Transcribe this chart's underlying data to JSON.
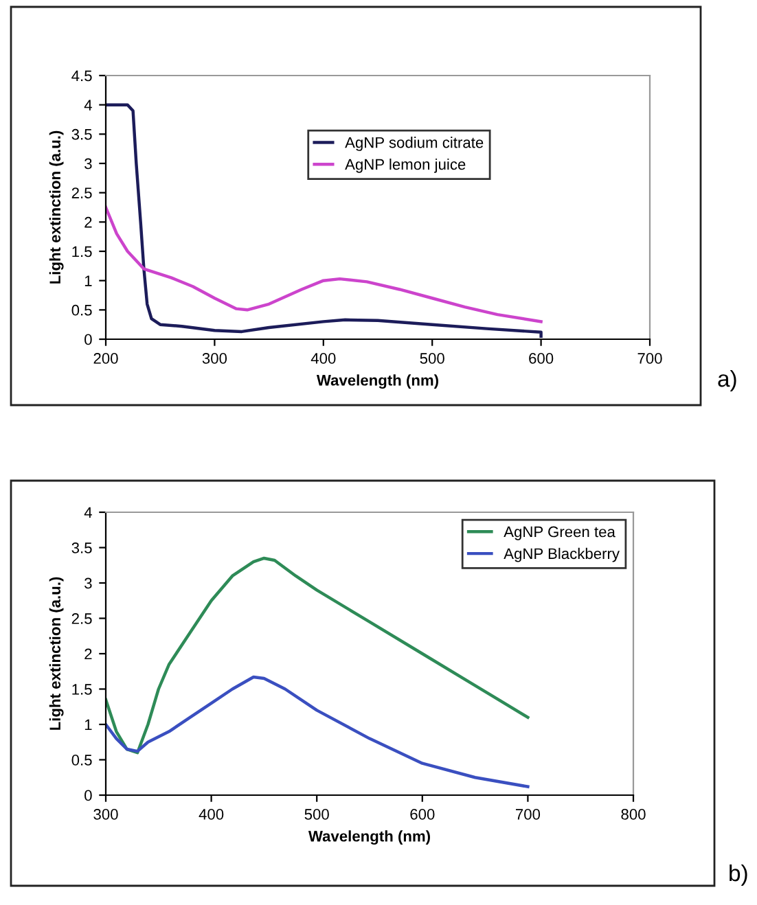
{
  "chart_data": [
    {
      "type": "line",
      "xlabel": "Wavelength (nm)",
      "ylabel": "Light extinction (a.u.)",
      "xlim": [
        200,
        700
      ],
      "ylim": [
        0,
        4.5
      ],
      "xticks": [
        200,
        300,
        400,
        500,
        600,
        700
      ],
      "yticks": [
        0,
        0.5,
        1,
        1.5,
        2,
        2.5,
        3,
        3.5,
        4,
        4.5
      ],
      "grid": false,
      "legend": "top right",
      "annotations": [
        "a)"
      ],
      "series": [
        {
          "name": "AgNP sodium citrate",
          "color": "#1c1c5a",
          "x": [
            200,
            210,
            220,
            225,
            228,
            232,
            235,
            238,
            242,
            250,
            270,
            300,
            325,
            350,
            400,
            420,
            450,
            500,
            550,
            600,
            600
          ],
          "values": [
            4.0,
            4.0,
            4.0,
            3.9,
            3.0,
            2.0,
            1.2,
            0.6,
            0.35,
            0.25,
            0.22,
            0.15,
            0.13,
            0.2,
            0.3,
            0.33,
            0.32,
            0.25,
            0.18,
            0.12,
            0.05
          ]
        },
        {
          "name": "AgNP lemon juice",
          "color": "#cc44cc",
          "x": [
            200,
            210,
            220,
            235,
            260,
            280,
            300,
            320,
            330,
            350,
            380,
            400,
            415,
            440,
            470,
            500,
            530,
            560,
            600
          ],
          "values": [
            2.25,
            1.8,
            1.5,
            1.2,
            1.05,
            0.9,
            0.7,
            0.52,
            0.5,
            0.6,
            0.85,
            1.0,
            1.03,
            0.98,
            0.85,
            0.7,
            0.55,
            0.42,
            0.3
          ]
        }
      ]
    },
    {
      "type": "line",
      "xlabel": "Wavelength (nm)",
      "ylabel": "Light extinction (a.u.)",
      "xlim": [
        300,
        800
      ],
      "ylim": [
        0,
        4
      ],
      "xticks": [
        300,
        400,
        500,
        600,
        700,
        800
      ],
      "yticks": [
        0,
        0.5,
        1,
        1.5,
        2,
        2.5,
        3,
        3.5,
        4
      ],
      "grid": false,
      "legend": "top right",
      "annotations": [
        "b)"
      ],
      "series": [
        {
          "name": "AgNP Green tea",
          "color": "#2e8b57",
          "x": [
            300,
            310,
            320,
            330,
            340,
            350,
            360,
            380,
            400,
            420,
            440,
            450,
            460,
            480,
            500,
            550,
            600,
            650,
            700
          ],
          "values": [
            1.35,
            0.9,
            0.65,
            0.6,
            1.0,
            1.5,
            1.85,
            2.3,
            2.75,
            3.1,
            3.3,
            3.35,
            3.32,
            3.1,
            2.9,
            2.45,
            2.0,
            1.55,
            1.1
          ]
        },
        {
          "name": "AgNP Blackberry",
          "color": "#3a4fc0",
          "x": [
            300,
            310,
            320,
            330,
            340,
            360,
            380,
            400,
            420,
            440,
            450,
            470,
            500,
            550,
            600,
            650,
            700
          ],
          "values": [
            1.0,
            0.8,
            0.65,
            0.62,
            0.75,
            0.9,
            1.1,
            1.3,
            1.5,
            1.67,
            1.65,
            1.5,
            1.2,
            0.8,
            0.45,
            0.25,
            0.12
          ]
        }
      ]
    }
  ]
}
